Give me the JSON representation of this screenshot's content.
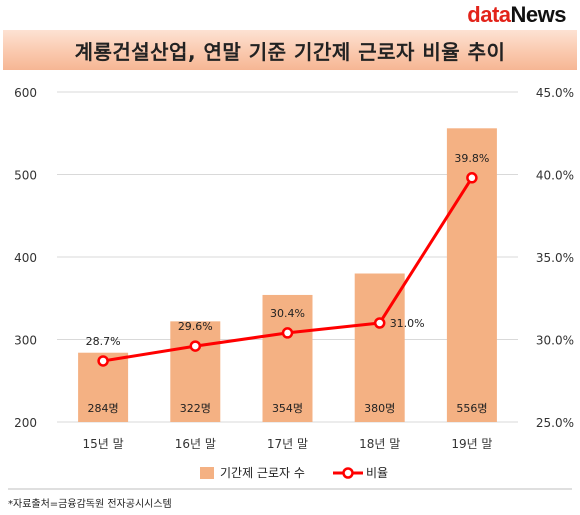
{
  "brand": {
    "logo_part1": "data",
    "logo_part2": "News"
  },
  "title": "계룡건설산업, 연말 기준 기간제 근로자 비율 추이",
  "source": "*자료출처=금융감독원 전자공시시스템",
  "colors": {
    "bar": "#f4b183",
    "line": "#ff0000",
    "marker_fill": "#ffffff"
  },
  "chart_data": {
    "type": "bar+line",
    "categories": [
      "15년 말",
      "16년 말",
      "17년 말",
      "18년 말",
      "19년 말"
    ],
    "series": [
      {
        "name": "기간제 근로자 수",
        "type": "bar",
        "axis": "left",
        "values": [
          284,
          322,
          354,
          380,
          556
        ],
        "labels": [
          "284명",
          "322명",
          "354명",
          "380명",
          "556명"
        ]
      },
      {
        "name": "비율",
        "type": "line",
        "axis": "right",
        "values": [
          28.7,
          29.6,
          30.4,
          31.0,
          39.8
        ],
        "labels": [
          "28.7%",
          "29.6%",
          "30.4%",
          "31.0%",
          "39.8%"
        ]
      }
    ],
    "y_left": {
      "min": 200,
      "max": 600,
      "ticks": [
        200,
        300,
        400,
        500,
        600
      ],
      "tick_labels": [
        "200",
        "300",
        "400",
        "500",
        "600"
      ]
    },
    "y_right": {
      "min": 25.0,
      "max": 45.0,
      "ticks": [
        25.0,
        30.0,
        35.0,
        40.0,
        45.0
      ],
      "tick_labels": [
        "25.0%",
        "30.0%",
        "35.0%",
        "40.0%",
        "45.0%"
      ]
    },
    "grid": true,
    "legend_position": "bottom"
  }
}
